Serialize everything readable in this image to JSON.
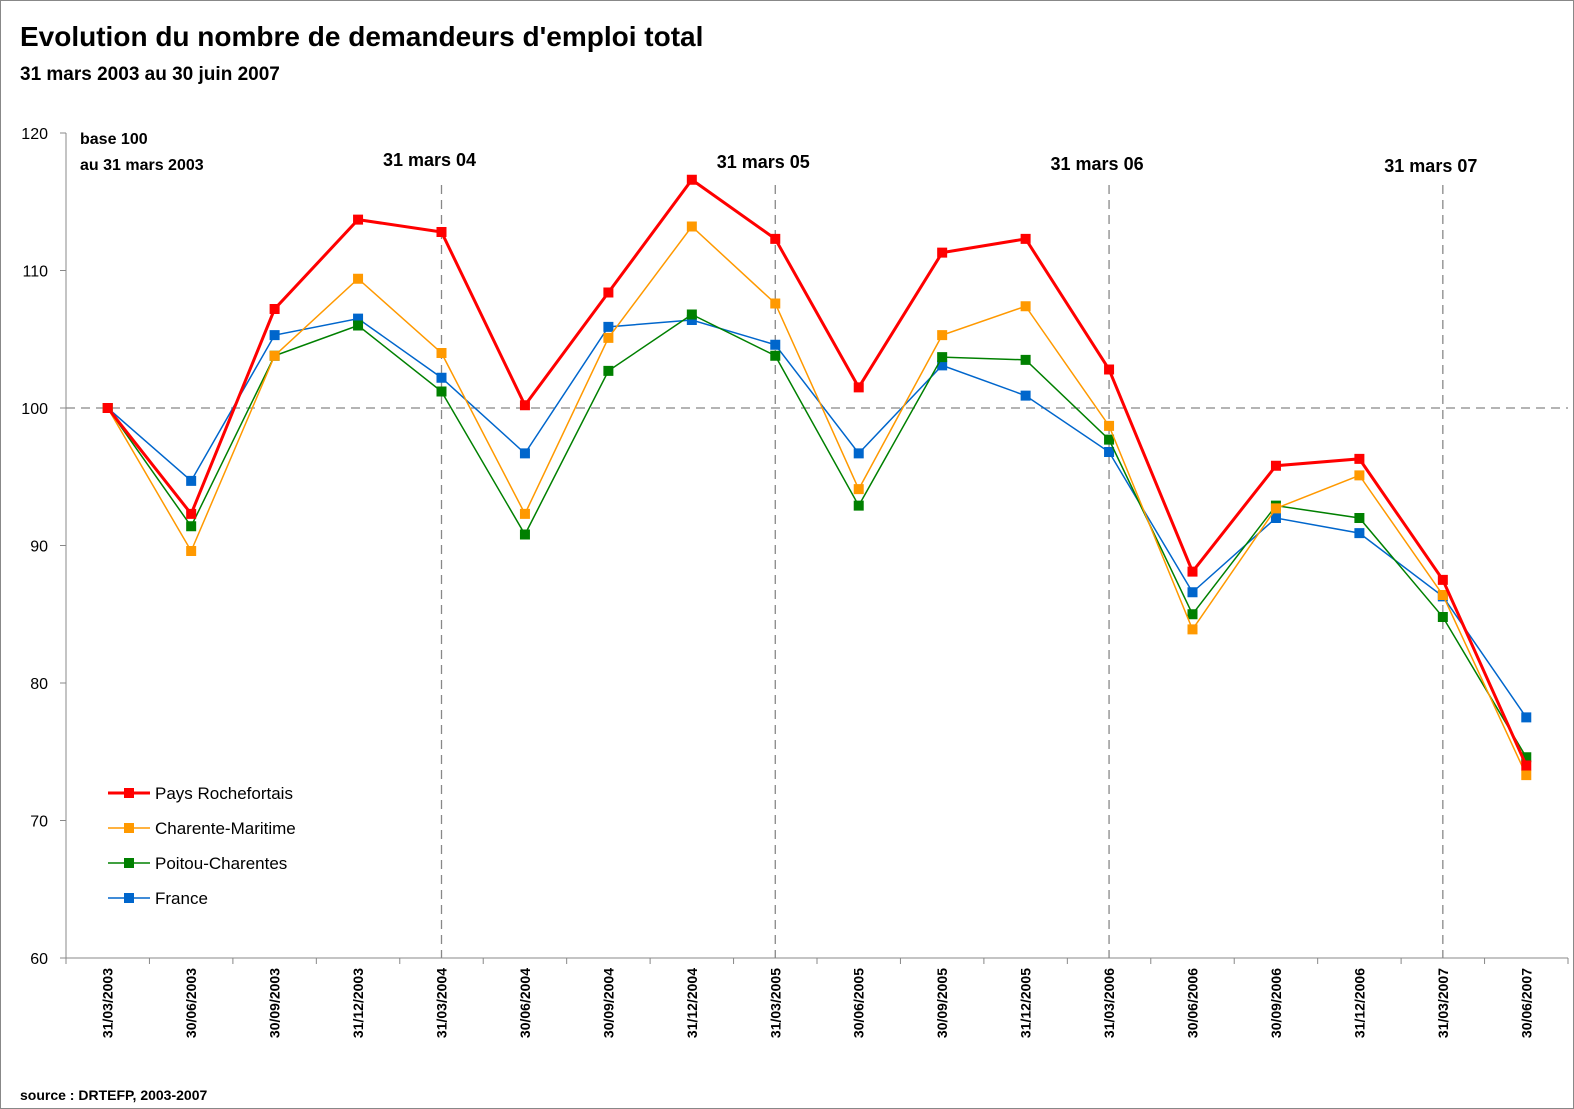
{
  "chart_data": {
    "type": "line",
    "title": "Evolution du nombre de demandeurs d'emploi total",
    "subtitle": "31 mars 2003 au 30 juin 2007",
    "source": "source : DRTEFP, 2003-2007",
    "categories": [
      "31/03/2003",
      "30/06/2003",
      "30/09/2003",
      "31/12/2003",
      "31/03/2004",
      "30/06/2004",
      "30/09/2004",
      "31/12/2004",
      "31/03/2005",
      "30/06/2005",
      "30/09/2005",
      "31/12/2005",
      "31/03/2006",
      "30/06/2006",
      "30/09/2006",
      "31/12/2006",
      "31/03/2007",
      "30/06/2007"
    ],
    "series": [
      {
        "name": "Pays Rochefortais",
        "color": "#ff0000",
        "values": [
          100,
          92.3,
          107.2,
          113.7,
          112.8,
          100.2,
          108.4,
          116.6,
          112.3,
          101.5,
          111.3,
          112.3,
          102.8,
          88.1,
          95.8,
          96.3,
          87.5,
          74
        ]
      },
      {
        "name": "Charente-Maritime",
        "color": "#ff9900",
        "values": [
          100,
          89.6,
          103.8,
          109.4,
          104,
          92.3,
          105.1,
          113.2,
          107.6,
          94.1,
          105.3,
          107.4,
          98.7,
          83.9,
          92.7,
          95.1,
          86.4,
          73.3
        ]
      },
      {
        "name": "Poitou-Charentes",
        "color": "#008000",
        "values": [
          100,
          91.4,
          103.8,
          106,
          101.2,
          90.8,
          102.7,
          106.8,
          103.8,
          92.9,
          103.7,
          103.5,
          97.7,
          85,
          92.9,
          92,
          84.8,
          74.6
        ]
      },
      {
        "name": "France",
        "color": "#0066cc",
        "values": [
          100,
          94.7,
          105.3,
          106.5,
          102.2,
          96.7,
          105.9,
          106.4,
          104.6,
          96.7,
          103.1,
          100.9,
          96.8,
          86.6,
          92,
          90.9,
          86.3,
          77.5
        ]
      }
    ],
    "ylim": [
      60,
      120
    ],
    "yticks": [
      60,
      70,
      80,
      90,
      100,
      110,
      120
    ],
    "reference_line": 100,
    "base_note": [
      "base 100",
      "au 31 mars 2003"
    ],
    "markers": [
      {
        "text": "31 mars 04",
        "x": "31/03/2004"
      },
      {
        "text": "31 mars 05",
        "x": "31/03/2005"
      },
      {
        "text": "31 mars 06",
        "x": "31/03/2006"
      },
      {
        "text": "31 mars 07",
        "x": "31/03/2007"
      }
    ],
    "legend": "bottom-left",
    "grid": false
  }
}
